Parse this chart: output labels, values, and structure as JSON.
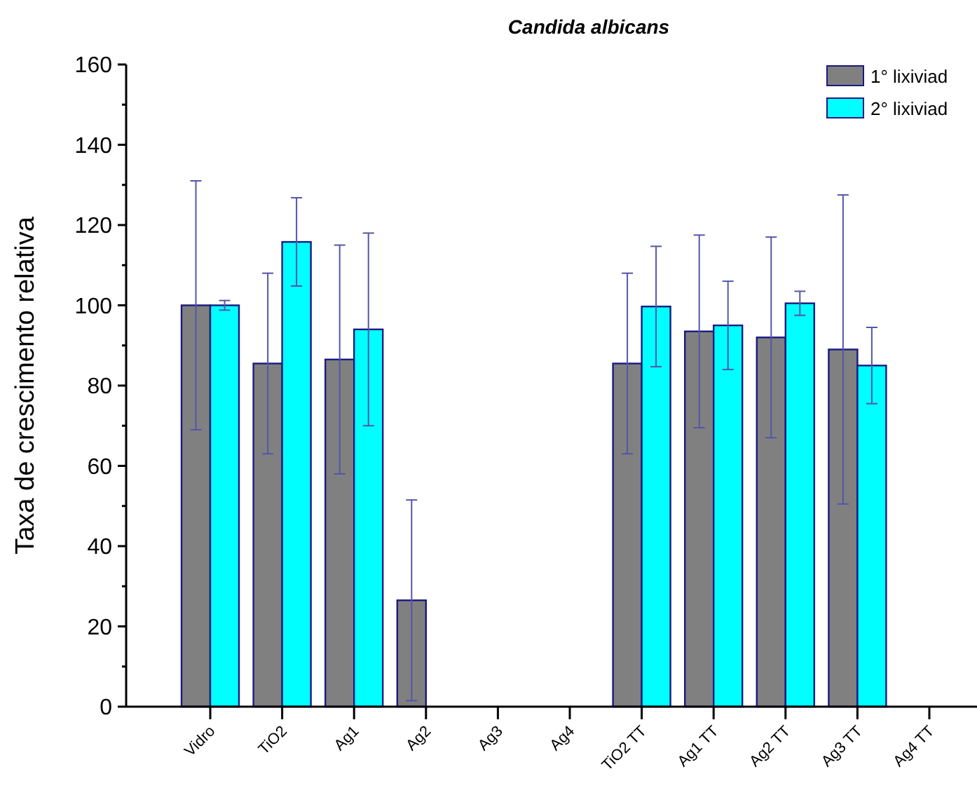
{
  "chart_data": {
    "type": "bar",
    "title": "Candida albicans",
    "ylabel": "Taxa de crescimento relativa",
    "categories": [
      "Vidro",
      "TiO2",
      "Ag1",
      "Ag2",
      "Ag3",
      "Ag4",
      "TiO2 TT",
      "Ag1 TT",
      "Ag2 TT",
      "Ag3 TT",
      "Ag4 TT"
    ],
    "series": [
      {
        "name": "1° lixiviad",
        "color": "#808080",
        "values": [
          100,
          85.5,
          86.5,
          26.5,
          null,
          null,
          85.5,
          93.5,
          92,
          89,
          null
        ],
        "errors": [
          31,
          22.5,
          28.5,
          25,
          null,
          null,
          22.5,
          24,
          25,
          38.5,
          null
        ]
      },
      {
        "name": "2° lixiviad",
        "color": "#00ffff",
        "values": [
          100,
          115.8,
          94,
          null,
          null,
          null,
          99.7,
          95,
          100.5,
          85,
          null
        ],
        "errors": [
          1.2,
          11,
          24,
          null,
          null,
          null,
          15,
          11,
          3,
          9.5,
          null
        ]
      }
    ],
    "ylim": [
      0,
      160
    ],
    "yticks": [
      0,
      {
        "value": 10,
        "label": null
      },
      20,
      {
        "value": 30,
        "label": null
      },
      40,
      {
        "value": 50,
        "label": null
      },
      60,
      {
        "value": 70,
        "label": null
      },
      80,
      {
        "value": 90,
        "label": null
      },
      100,
      {
        "value": 110,
        "label": null
      },
      120,
      {
        "value": 130,
        "label": null
      },
      140,
      {
        "value": 150,
        "label": null
      },
      160
    ],
    "grid": false,
    "legend": "top right"
  }
}
